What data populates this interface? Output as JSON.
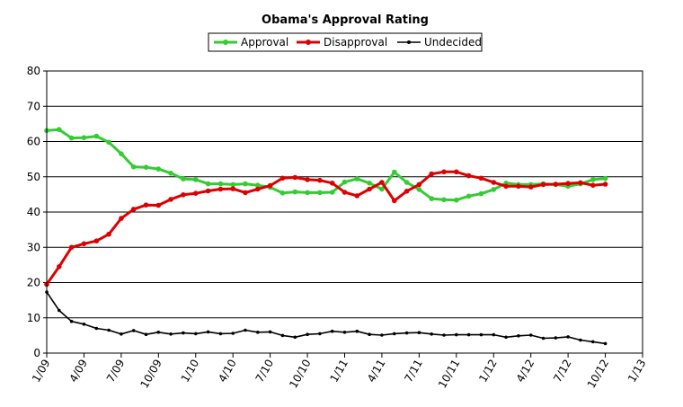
{
  "chart_data": {
    "type": "line",
    "title": "Obama's Approval Rating",
    "xlabel": "",
    "ylabel": "",
    "ylim": [
      0,
      80
    ],
    "yticks": [
      0,
      10,
      20,
      30,
      40,
      50,
      60,
      70,
      80
    ],
    "xlim": [
      "2009-01",
      "2013-01"
    ],
    "xticks": [
      "1/09",
      "4/09",
      "7/09",
      "10/09",
      "1/10",
      "4/10",
      "7/10",
      "10/10",
      "1/11",
      "4/11",
      "7/11",
      "10/11",
      "1/12",
      "4/12",
      "7/12",
      "10/12",
      "1/13"
    ],
    "grid": "horizontal",
    "legend_position": "top",
    "x": [
      "2009-01",
      "2009-02",
      "2009-03",
      "2009-04",
      "2009-05",
      "2009-06",
      "2009-07",
      "2009-08",
      "2009-09",
      "2009-10",
      "2009-11",
      "2009-12",
      "2010-01",
      "2010-02",
      "2010-03",
      "2010-04",
      "2010-05",
      "2010-06",
      "2010-07",
      "2010-08",
      "2010-09",
      "2010-10",
      "2010-11",
      "2010-12",
      "2011-01",
      "2011-02",
      "2011-03",
      "2011-04",
      "2011-05",
      "2011-06",
      "2011-07",
      "2011-08",
      "2011-09",
      "2011-10",
      "2011-11",
      "2011-12",
      "2012-01",
      "2012-02",
      "2012-03",
      "2012-04",
      "2012-05",
      "2012-06",
      "2012-07",
      "2012-08",
      "2012-09",
      "2012-10"
    ],
    "series": [
      {
        "name": "Approval",
        "color": "#33cc33",
        "values": [
          63.1,
          63.4,
          61.0,
          61.1,
          61.5,
          59.8,
          56.5,
          52.8,
          52.7,
          52.2,
          51.0,
          49.4,
          49.2,
          48.0,
          48.0,
          47.8,
          48.0,
          47.6,
          47.0,
          45.4,
          45.7,
          45.5,
          45.5,
          45.6,
          48.5,
          49.4,
          48.2,
          46.5,
          51.3,
          48.4,
          46.4,
          43.8,
          43.5,
          43.4,
          44.5,
          45.2,
          46.4,
          48.2,
          47.8,
          47.8,
          48.0,
          47.8,
          47.3,
          48.0,
          49.2,
          49.5
        ]
      },
      {
        "name": "Disapproval",
        "color": "#dd0000",
        "values": [
          19.5,
          24.5,
          30.0,
          31.0,
          31.8,
          33.7,
          38.2,
          40.8,
          42.0,
          41.9,
          43.6,
          44.9,
          45.3,
          46.0,
          46.5,
          46.6,
          45.5,
          46.5,
          47.5,
          49.6,
          49.8,
          49.2,
          49.0,
          48.2,
          45.6,
          44.6,
          46.5,
          48.4,
          43.2,
          45.9,
          47.8,
          50.8,
          51.4,
          51.4,
          50.3,
          49.6,
          48.4,
          47.3,
          47.3,
          47.1,
          47.8,
          47.9,
          48.1,
          48.3,
          47.6,
          47.9
        ]
      },
      {
        "name": "Undecided",
        "color": "#000000",
        "values": [
          17.3,
          12.1,
          9.0,
          8.2,
          7.0,
          6.5,
          5.4,
          6.4,
          5.3,
          5.9,
          5.4,
          5.7,
          5.5,
          6.0,
          5.5,
          5.6,
          6.5,
          5.9,
          6.0,
          5.0,
          4.5,
          5.3,
          5.5,
          6.2,
          5.9,
          6.2,
          5.3,
          5.1,
          5.5,
          5.7,
          5.8,
          5.4,
          5.1,
          5.2,
          5.2,
          5.2,
          5.2,
          4.5,
          4.9,
          5.1,
          4.2,
          4.3,
          4.6,
          3.7,
          3.2,
          2.7
        ]
      }
    ]
  }
}
